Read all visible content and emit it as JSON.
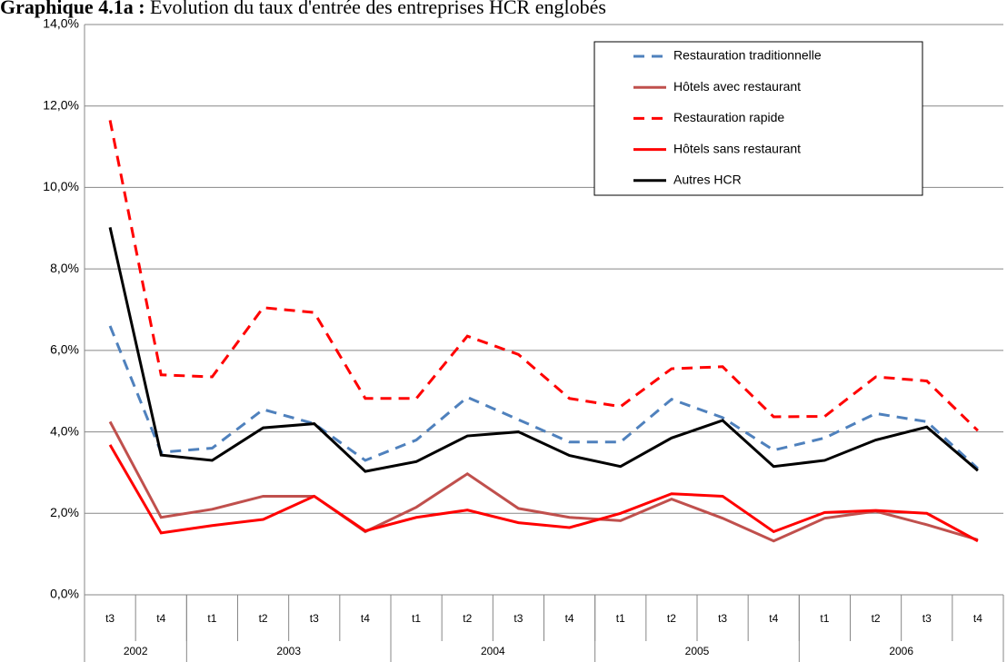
{
  "chart_data": {
    "type": "line",
    "title_label": "Graphique 4.1a :",
    "title": "Evolution du taux d'entrée des entreprises HCR englobés",
    "categories": [
      "t3",
      "t4",
      "t1",
      "t2",
      "t3",
      "t4",
      "t1",
      "t2",
      "t3",
      "t4",
      "t1",
      "t2",
      "t3",
      "t4",
      "t1",
      "t2",
      "t3",
      "t4"
    ],
    "groups": [
      {
        "name": "2002",
        "span": 2
      },
      {
        "name": "2003",
        "span": 4
      },
      {
        "name": "2004",
        "span": 4
      },
      {
        "name": "2005",
        "span": 4
      },
      {
        "name": "2006",
        "span": 4
      }
    ],
    "series": [
      {
        "name": "Restauration traditionnelle",
        "color": "#4f81bd",
        "dash": true,
        "values": [
          6.6,
          3.5,
          3.6,
          4.55,
          4.2,
          3.3,
          3.8,
          4.85,
          4.3,
          3.75,
          3.75,
          4.8,
          4.35,
          3.55,
          3.85,
          4.45,
          4.25,
          3.1
        ]
      },
      {
        "name": "Hôtels avec restaurant",
        "color": "#c0504d",
        "dash": false,
        "values": [
          4.25,
          1.9,
          2.1,
          2.42,
          2.42,
          1.55,
          2.15,
          2.97,
          2.12,
          1.9,
          1.82,
          2.35,
          1.88,
          1.32,
          1.88,
          2.05,
          1.72,
          1.35
        ]
      },
      {
        "name": "Restauration rapide",
        "color": "#ff0000",
        "dash": true,
        "values": [
          11.65,
          5.4,
          5.35,
          7.05,
          6.93,
          4.82,
          4.82,
          6.35,
          5.9,
          4.82,
          4.62,
          5.55,
          5.6,
          4.37,
          4.38,
          5.35,
          5.25,
          4.03
        ]
      },
      {
        "name": "Hôtels sans restaurant",
        "color": "#ff0000",
        "dash": false,
        "values": [
          3.68,
          1.52,
          1.7,
          1.85,
          2.42,
          1.57,
          1.9,
          2.08,
          1.77,
          1.65,
          2.0,
          2.48,
          2.42,
          1.55,
          2.02,
          2.07,
          2.0,
          1.32
        ]
      },
      {
        "name": "Autres HCR",
        "color": "#000000",
        "dash": false,
        "values": [
          9.02,
          3.43,
          3.3,
          4.1,
          4.2,
          3.03,
          3.27,
          3.9,
          4.0,
          3.42,
          3.15,
          3.85,
          4.28,
          3.15,
          3.3,
          3.8,
          4.12,
          3.05
        ]
      }
    ],
    "ylim": [
      0,
      14
    ],
    "yticks": [
      {
        "value": 0,
        "label": "0,0%"
      },
      {
        "value": 2,
        "label": "2,0%"
      },
      {
        "value": 4,
        "label": "4,0%"
      },
      {
        "value": 6,
        "label": "6,0%"
      },
      {
        "value": 8,
        "label": "8,0%"
      },
      {
        "value": 10,
        "label": "10,0%"
      },
      {
        "value": 12,
        "label": "12,0%"
      },
      {
        "value": 14,
        "label": "14,0%"
      }
    ],
    "grid": true,
    "legend": "top-right"
  }
}
